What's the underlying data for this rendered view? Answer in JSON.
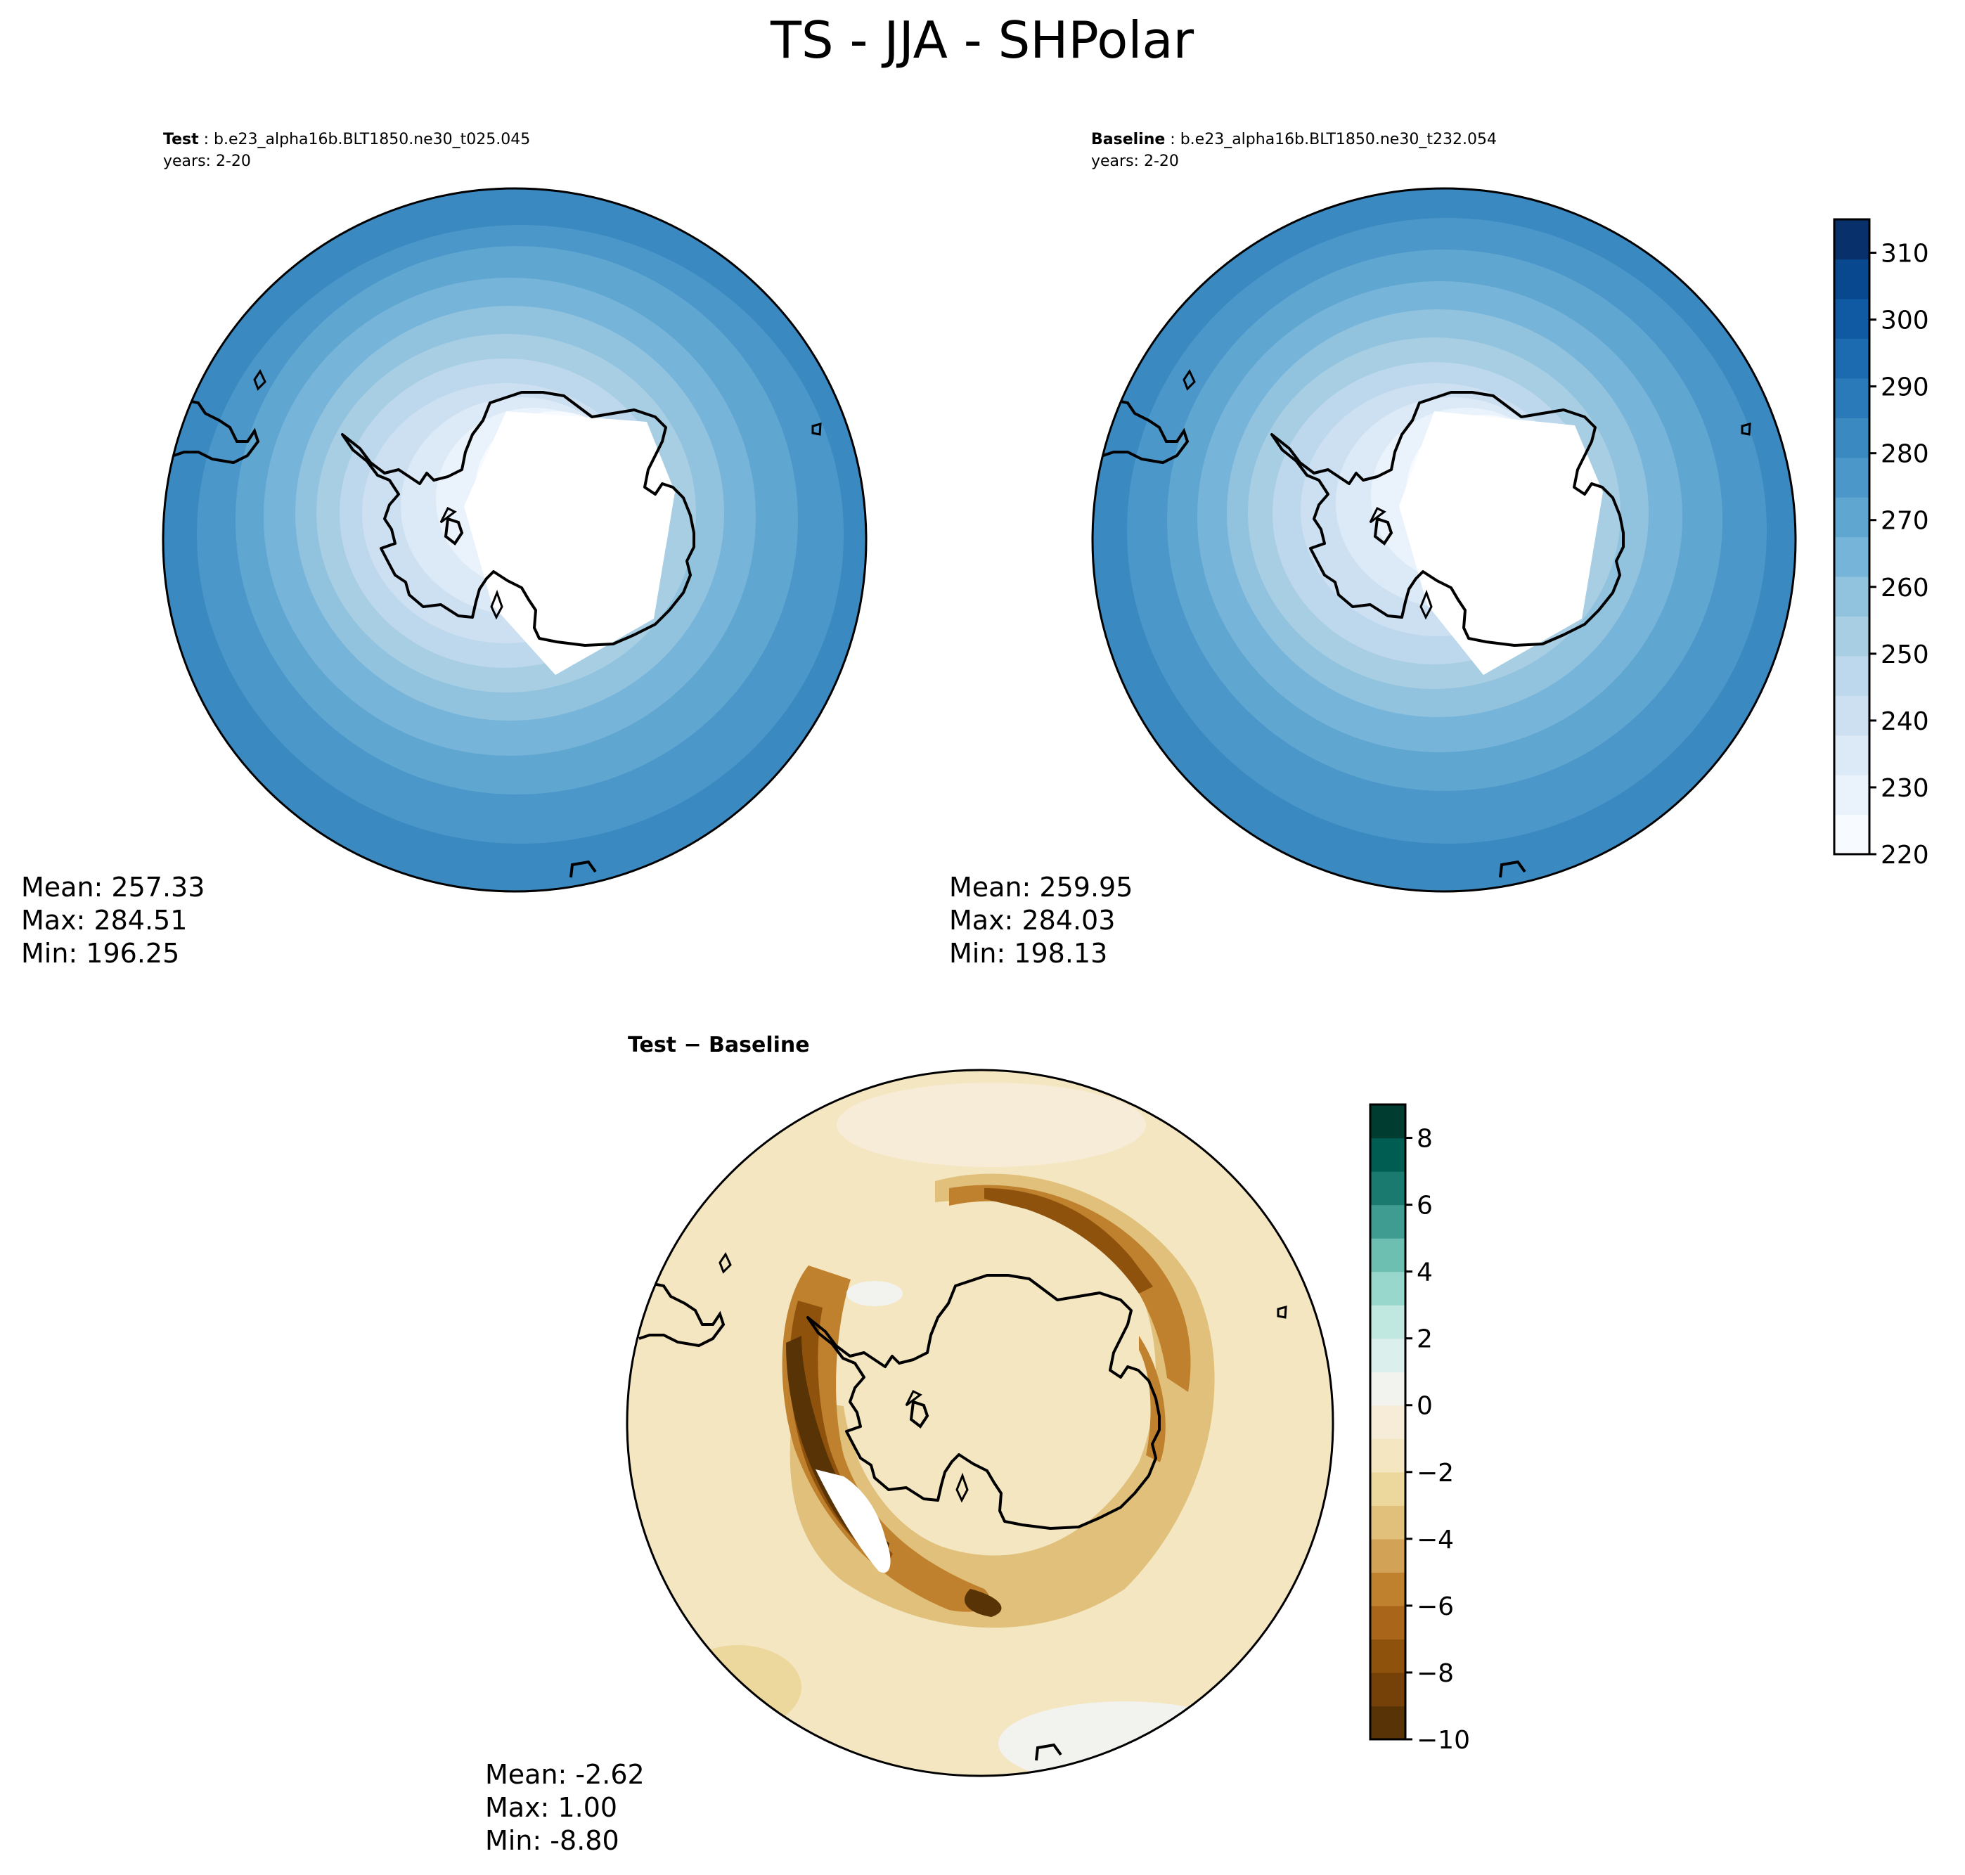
{
  "figure": {
    "title": "TS - JJA - SHPolar"
  },
  "panels": {
    "test": {
      "label": "Test",
      "case": "b.e23_alpha16b.BLT1850.ne30_t025.045",
      "years": "years: 2-20",
      "stats": {
        "mean": "Mean: 257.33",
        "max": "Max: 284.51",
        "min": "Min: 196.25"
      }
    },
    "baseline": {
      "label": "Baseline",
      "case": "b.e23_alpha16b.BLT1850.ne30_t232.054",
      "years": "years: 2-20",
      "stats": {
        "mean": "Mean: 259.95",
        "max": "Max: 284.03",
        "min": "Min: 198.13"
      }
    },
    "diff": {
      "title": "Test − Baseline",
      "stats": {
        "mean": "Mean: -2.62",
        "max": "Max:  1.00",
        "min": "Min: -8.80"
      }
    }
  },
  "colorbars": {
    "absolute": {
      "ticks": [
        "220",
        "230",
        "240",
        "250",
        "260",
        "270",
        "280",
        "290",
        "300",
        "310"
      ],
      "range": [
        220,
        315
      ],
      "colors": [
        "#f7fbff",
        "#eaf3fb",
        "#dce9f6",
        "#cde0f1",
        "#bdd7ec",
        "#a8cee4",
        "#91c3de",
        "#77b4d9",
        "#5fa6d1",
        "#4b97c9",
        "#3a89c1",
        "#2a7ab9",
        "#1c6aaf",
        "#0f5aa3",
        "#08488e",
        "#08306b"
      ]
    },
    "difference": {
      "ticks": [
        "−10",
        "−8",
        "−6",
        "−4",
        "−2",
        "0",
        "2",
        "4",
        "6",
        "8"
      ],
      "range": [
        -10,
        9
      ],
      "colors": [
        "#583306",
        "#764109",
        "#8f520d",
        "#a9661b",
        "#bf812d",
        "#d2a356",
        "#e0c07a",
        "#ecd89d",
        "#f4e6c1",
        "#f6ecd7",
        "#f2f2ee",
        "#dbefec",
        "#c1e7e1",
        "#98d7cc",
        "#6dbfb2",
        "#3f9c91",
        "#1b7a70",
        "#005d52",
        "#003c30"
      ]
    }
  },
  "chart_data": [
    {
      "type": "heatmap",
      "title": "Test : b.e23_alpha16b.BLT1850.ne30_t025.045",
      "variable": "TS",
      "season": "JJA",
      "region": "SHPolar",
      "years": "2-20",
      "colorbar_range": [
        220,
        315
      ],
      "colorbar_ticks": [
        220,
        230,
        240,
        250,
        260,
        270,
        280,
        290,
        300,
        310
      ],
      "mean": 257.33,
      "max": 284.51,
      "min": 196.25,
      "colormap": "Blues"
    },
    {
      "type": "heatmap",
      "title": "Baseline : b.e23_alpha16b.BLT1850.ne30_t232.054",
      "variable": "TS",
      "season": "JJA",
      "region": "SHPolar",
      "years": "2-20",
      "colorbar_range": [
        220,
        315
      ],
      "colorbar_ticks": [
        220,
        230,
        240,
        250,
        260,
        270,
        280,
        290,
        300,
        310
      ],
      "mean": 259.95,
      "max": 284.03,
      "min": 198.13,
      "colormap": "Blues"
    },
    {
      "type": "heatmap",
      "title": "Test − Baseline",
      "variable": "TS",
      "colorbar_range": [
        -10,
        9
      ],
      "colorbar_ticks": [
        -10,
        -8,
        -6,
        -4,
        -2,
        0,
        2,
        4,
        6,
        8
      ],
      "mean": -2.62,
      "max": 1.0,
      "min": -8.8,
      "colormap": "BrBG"
    }
  ]
}
